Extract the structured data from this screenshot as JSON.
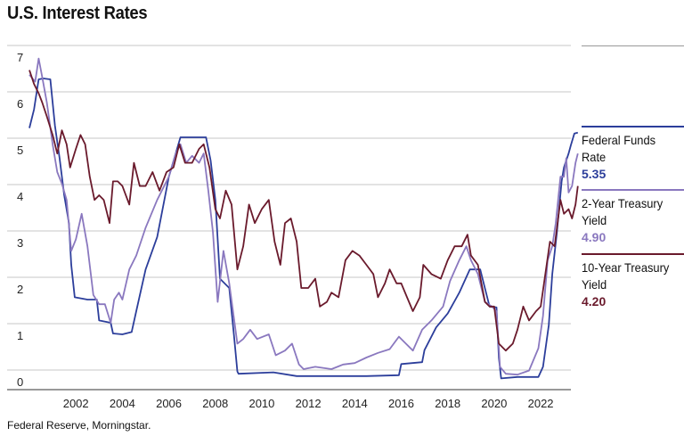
{
  "title": "U.S. Interest Rates",
  "source": "Federal Reserve, Morningstar.",
  "colors": {
    "fed_funds": "#2c3e9b",
    "two_year": "#8a78bf",
    "ten_year": "#6a1a2c",
    "grid": "#c7c7c7",
    "axis": "#333333"
  },
  "legend": [
    {
      "name": "Federal Funds Rate",
      "value": "5.35"
    },
    {
      "name": "2-Year Treasury Yield",
      "value": "4.90"
    },
    {
      "name": "10-Year Treasury Yield",
      "value": "4.20"
    }
  ],
  "chart_data": {
    "type": "line",
    "title": "U.S. Interest Rates",
    "xlabel": "",
    "ylabel": "",
    "xlim": [
      2000,
      2023.3
    ],
    "ylim": [
      0,
      7
    ],
    "x_ticks": [
      "2002",
      "2004",
      "2006",
      "2008",
      "2010",
      "2012",
      "2014",
      "2016",
      "2018",
      "2020",
      "2022"
    ],
    "y_ticks": [
      "0",
      "1",
      "2",
      "3",
      "4",
      "5",
      "6",
      "7"
    ],
    "grid": true,
    "legend_position": "right",
    "series": [
      {
        "name": "Federal Funds Rate",
        "points": [
          [
            2000.0,
            5.45
          ],
          [
            2000.2,
            5.85
          ],
          [
            2000.4,
            6.5
          ],
          [
            2000.6,
            6.52
          ],
          [
            2000.9,
            6.5
          ],
          [
            2001.0,
            6.0
          ],
          [
            2001.1,
            5.5
          ],
          [
            2001.3,
            4.8
          ],
          [
            2001.5,
            4.0
          ],
          [
            2001.7,
            3.4
          ],
          [
            2001.8,
            2.5
          ],
          [
            2001.95,
            1.8
          ],
          [
            2002.5,
            1.75
          ],
          [
            2002.9,
            1.75
          ],
          [
            2003.0,
            1.3
          ],
          [
            2003.5,
            1.25
          ],
          [
            2003.6,
            1.02
          ],
          [
            2004.0,
            1.0
          ],
          [
            2004.4,
            1.05
          ],
          [
            2004.6,
            1.5
          ],
          [
            2005.0,
            2.4
          ],
          [
            2005.5,
            3.1
          ],
          [
            2006.0,
            4.4
          ],
          [
            2006.5,
            5.25
          ],
          [
            2007.0,
            5.25
          ],
          [
            2007.6,
            5.25
          ],
          [
            2007.8,
            4.75
          ],
          [
            2008.0,
            3.9
          ],
          [
            2008.2,
            2.2
          ],
          [
            2008.6,
            2.0
          ],
          [
            2008.8,
            1.0
          ],
          [
            2008.95,
            0.2
          ],
          [
            2009.0,
            0.15
          ],
          [
            2010.5,
            0.18
          ],
          [
            2011.5,
            0.1
          ],
          [
            2013.0,
            0.1
          ],
          [
            2014.5,
            0.1
          ],
          [
            2015.9,
            0.12
          ],
          [
            2016.0,
            0.36
          ],
          [
            2016.9,
            0.4
          ],
          [
            2017.0,
            0.66
          ],
          [
            2017.5,
            1.15
          ],
          [
            2018.0,
            1.45
          ],
          [
            2018.5,
            1.9
          ],
          [
            2018.95,
            2.4
          ],
          [
            2019.4,
            2.4
          ],
          [
            2019.55,
            2.1
          ],
          [
            2019.8,
            1.6
          ],
          [
            2020.1,
            1.58
          ],
          [
            2020.2,
            0.5
          ],
          [
            2020.3,
            0.05
          ],
          [
            2021.0,
            0.08
          ],
          [
            2021.9,
            0.08
          ],
          [
            2022.1,
            0.3
          ],
          [
            2022.35,
            1.2
          ],
          [
            2022.5,
            2.3
          ],
          [
            2022.7,
            3.2
          ],
          [
            2022.9,
            4.3
          ],
          [
            2023.0,
            4.6
          ],
          [
            2023.2,
            4.9
          ],
          [
            2023.3,
            5.08
          ],
          [
            2023.45,
            5.33
          ],
          [
            2023.6,
            5.35
          ]
        ]
      },
      {
        "name": "2-Year Treasury Yield",
        "points": [
          [
            2000.0,
            6.6
          ],
          [
            2000.25,
            6.45
          ],
          [
            2000.4,
            6.95
          ],
          [
            2000.55,
            6.55
          ],
          [
            2000.75,
            6.0
          ],
          [
            2001.0,
            5.1
          ],
          [
            2001.2,
            4.5
          ],
          [
            2001.4,
            4.25
          ],
          [
            2001.6,
            3.9
          ],
          [
            2001.8,
            2.8
          ],
          [
            2002.0,
            3.05
          ],
          [
            2002.25,
            3.6
          ],
          [
            2002.5,
            2.9
          ],
          [
            2002.75,
            1.85
          ],
          [
            2003.0,
            1.65
          ],
          [
            2003.25,
            1.65
          ],
          [
            2003.5,
            1.25
          ],
          [
            2003.65,
            1.75
          ],
          [
            2003.85,
            1.9
          ],
          [
            2004.0,
            1.75
          ],
          [
            2004.3,
            2.4
          ],
          [
            2004.6,
            2.7
          ],
          [
            2005.0,
            3.3
          ],
          [
            2005.5,
            3.9
          ],
          [
            2006.0,
            4.4
          ],
          [
            2006.3,
            4.9
          ],
          [
            2006.5,
            5.1
          ],
          [
            2006.75,
            4.7
          ],
          [
            2007.0,
            4.85
          ],
          [
            2007.3,
            4.7
          ],
          [
            2007.5,
            4.9
          ],
          [
            2007.7,
            4.1
          ],
          [
            2007.9,
            3.2
          ],
          [
            2008.1,
            1.7
          ],
          [
            2008.35,
            2.8
          ],
          [
            2008.6,
            2.1
          ],
          [
            2008.95,
            0.8
          ],
          [
            2009.2,
            0.9
          ],
          [
            2009.5,
            1.1
          ],
          [
            2009.8,
            0.9
          ],
          [
            2010.3,
            1.0
          ],
          [
            2010.6,
            0.55
          ],
          [
            2011.0,
            0.65
          ],
          [
            2011.3,
            0.8
          ],
          [
            2011.6,
            0.35
          ],
          [
            2011.8,
            0.25
          ],
          [
            2012.3,
            0.3
          ],
          [
            2013.0,
            0.25
          ],
          [
            2013.5,
            0.35
          ],
          [
            2014.0,
            0.38
          ],
          [
            2014.5,
            0.5
          ],
          [
            2015.0,
            0.6
          ],
          [
            2015.5,
            0.68
          ],
          [
            2015.9,
            0.95
          ],
          [
            2016.2,
            0.8
          ],
          [
            2016.5,
            0.65
          ],
          [
            2016.9,
            1.1
          ],
          [
            2017.3,
            1.3
          ],
          [
            2017.8,
            1.6
          ],
          [
            2018.1,
            2.15
          ],
          [
            2018.5,
            2.6
          ],
          [
            2018.8,
            2.9
          ],
          [
            2019.0,
            2.6
          ],
          [
            2019.3,
            2.3
          ],
          [
            2019.6,
            1.7
          ],
          [
            2019.9,
            1.6
          ],
          [
            2020.1,
            1.5
          ],
          [
            2020.25,
            0.3
          ],
          [
            2020.5,
            0.15
          ],
          [
            2021.0,
            0.13
          ],
          [
            2021.5,
            0.22
          ],
          [
            2021.9,
            0.7
          ],
          [
            2022.1,
            1.4
          ],
          [
            2022.3,
            2.6
          ],
          [
            2022.5,
            2.9
          ],
          [
            2022.65,
            3.4
          ],
          [
            2022.85,
            4.4
          ],
          [
            2023.0,
            4.4
          ],
          [
            2023.1,
            4.8
          ],
          [
            2023.2,
            4.06
          ],
          [
            2023.35,
            4.2
          ],
          [
            2023.5,
            4.7
          ],
          [
            2023.6,
            4.9
          ]
        ]
      },
      {
        "name": "10-Year Treasury Yield",
        "points": [
          [
            2000.0,
            6.7
          ],
          [
            2000.2,
            6.4
          ],
          [
            2000.4,
            6.2
          ],
          [
            2000.55,
            6.0
          ],
          [
            2000.75,
            5.7
          ],
          [
            2001.0,
            5.3
          ],
          [
            2001.2,
            4.9
          ],
          [
            2001.4,
            5.4
          ],
          [
            2001.6,
            5.1
          ],
          [
            2001.75,
            4.6
          ],
          [
            2002.0,
            5.0
          ],
          [
            2002.2,
            5.3
          ],
          [
            2002.4,
            5.1
          ],
          [
            2002.6,
            4.4
          ],
          [
            2002.8,
            3.9
          ],
          [
            2003.0,
            4.0
          ],
          [
            2003.2,
            3.9
          ],
          [
            2003.45,
            3.4
          ],
          [
            2003.6,
            4.3
          ],
          [
            2003.8,
            4.3
          ],
          [
            2004.0,
            4.2
          ],
          [
            2004.3,
            3.8
          ],
          [
            2004.5,
            4.7
          ],
          [
            2004.75,
            4.2
          ],
          [
            2005.0,
            4.2
          ],
          [
            2005.3,
            4.5
          ],
          [
            2005.6,
            4.1
          ],
          [
            2005.9,
            4.5
          ],
          [
            2006.2,
            4.6
          ],
          [
            2006.45,
            5.1
          ],
          [
            2006.7,
            4.7
          ],
          [
            2007.0,
            4.7
          ],
          [
            2007.3,
            5.0
          ],
          [
            2007.5,
            5.1
          ],
          [
            2007.75,
            4.6
          ],
          [
            2008.0,
            3.7
          ],
          [
            2008.2,
            3.5
          ],
          [
            2008.45,
            4.1
          ],
          [
            2008.7,
            3.8
          ],
          [
            2008.95,
            2.4
          ],
          [
            2009.2,
            2.9
          ],
          [
            2009.45,
            3.8
          ],
          [
            2009.7,
            3.4
          ],
          [
            2010.0,
            3.7
          ],
          [
            2010.3,
            3.9
          ],
          [
            2010.55,
            3.0
          ],
          [
            2010.8,
            2.5
          ],
          [
            2011.0,
            3.4
          ],
          [
            2011.25,
            3.5
          ],
          [
            2011.5,
            3.0
          ],
          [
            2011.7,
            2.0
          ],
          [
            2012.0,
            2.0
          ],
          [
            2012.3,
            2.2
          ],
          [
            2012.5,
            1.6
          ],
          [
            2012.8,
            1.7
          ],
          [
            2013.0,
            1.9
          ],
          [
            2013.3,
            1.8
          ],
          [
            2013.6,
            2.6
          ],
          [
            2013.9,
            2.8
          ],
          [
            2014.2,
            2.7
          ],
          [
            2014.5,
            2.5
          ],
          [
            2014.8,
            2.3
          ],
          [
            2015.0,
            1.8
          ],
          [
            2015.3,
            2.1
          ],
          [
            2015.5,
            2.4
          ],
          [
            2015.8,
            2.1
          ],
          [
            2016.0,
            2.1
          ],
          [
            2016.25,
            1.8
          ],
          [
            2016.5,
            1.5
          ],
          [
            2016.8,
            1.8
          ],
          [
            2016.95,
            2.5
          ],
          [
            2017.3,
            2.3
          ],
          [
            2017.7,
            2.2
          ],
          [
            2018.0,
            2.6
          ],
          [
            2018.3,
            2.9
          ],
          [
            2018.6,
            2.9
          ],
          [
            2018.85,
            3.15
          ],
          [
            2019.0,
            2.7
          ],
          [
            2019.3,
            2.5
          ],
          [
            2019.6,
            1.7
          ],
          [
            2019.8,
            1.6
          ],
          [
            2020.0,
            1.6
          ],
          [
            2020.2,
            0.8
          ],
          [
            2020.5,
            0.65
          ],
          [
            2020.8,
            0.8
          ],
          [
            2021.0,
            1.1
          ],
          [
            2021.25,
            1.6
          ],
          [
            2021.5,
            1.3
          ],
          [
            2021.8,
            1.5
          ],
          [
            2022.0,
            1.6
          ],
          [
            2022.2,
            2.3
          ],
          [
            2022.4,
            3.0
          ],
          [
            2022.6,
            2.9
          ],
          [
            2022.85,
            3.9
          ],
          [
            2023.0,
            3.6
          ],
          [
            2023.2,
            3.7
          ],
          [
            2023.35,
            3.5
          ],
          [
            2023.5,
            3.8
          ],
          [
            2023.6,
            4.2
          ]
        ]
      }
    ]
  }
}
